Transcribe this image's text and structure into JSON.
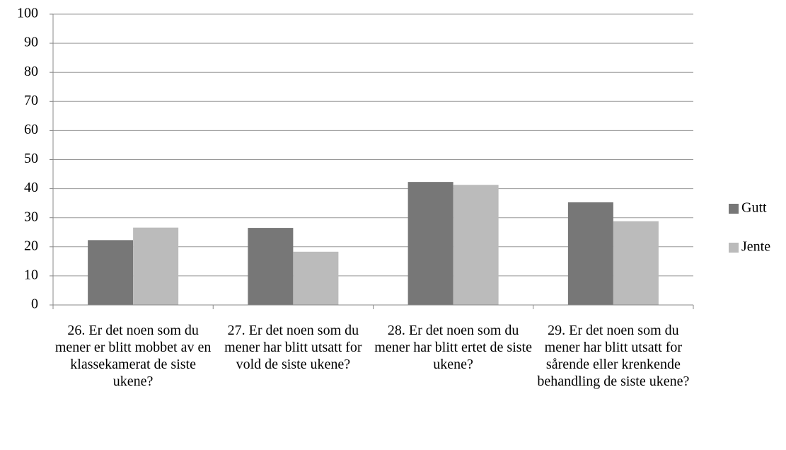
{
  "chart_data": {
    "type": "bar",
    "categories": [
      "26. Er det noen som du mener er blitt mobbet av en klassekamerat de siste ukene?",
      "27. Er det noen som du mener har blitt utsatt for vold de siste ukene?",
      "28. Er det noen som du mener har blitt ertet de siste ukene?",
      "29. Er det noen som du mener har blitt utsatt for sårende eller krenkende behandling de siste ukene?"
    ],
    "series": [
      {
        "name": "Gutt",
        "color": "#777777",
        "values": [
          22.3,
          26.5,
          42.3,
          35.3
        ]
      },
      {
        "name": "Jente",
        "color": "#bbbbbb",
        "values": [
          26.6,
          18.3,
          41.3,
          28.8
        ]
      }
    ],
    "ylim": [
      0,
      100
    ],
    "yticks": [
      0,
      10,
      20,
      30,
      40,
      50,
      60,
      70,
      80,
      90,
      100
    ],
    "grid": true,
    "legend": "right"
  }
}
